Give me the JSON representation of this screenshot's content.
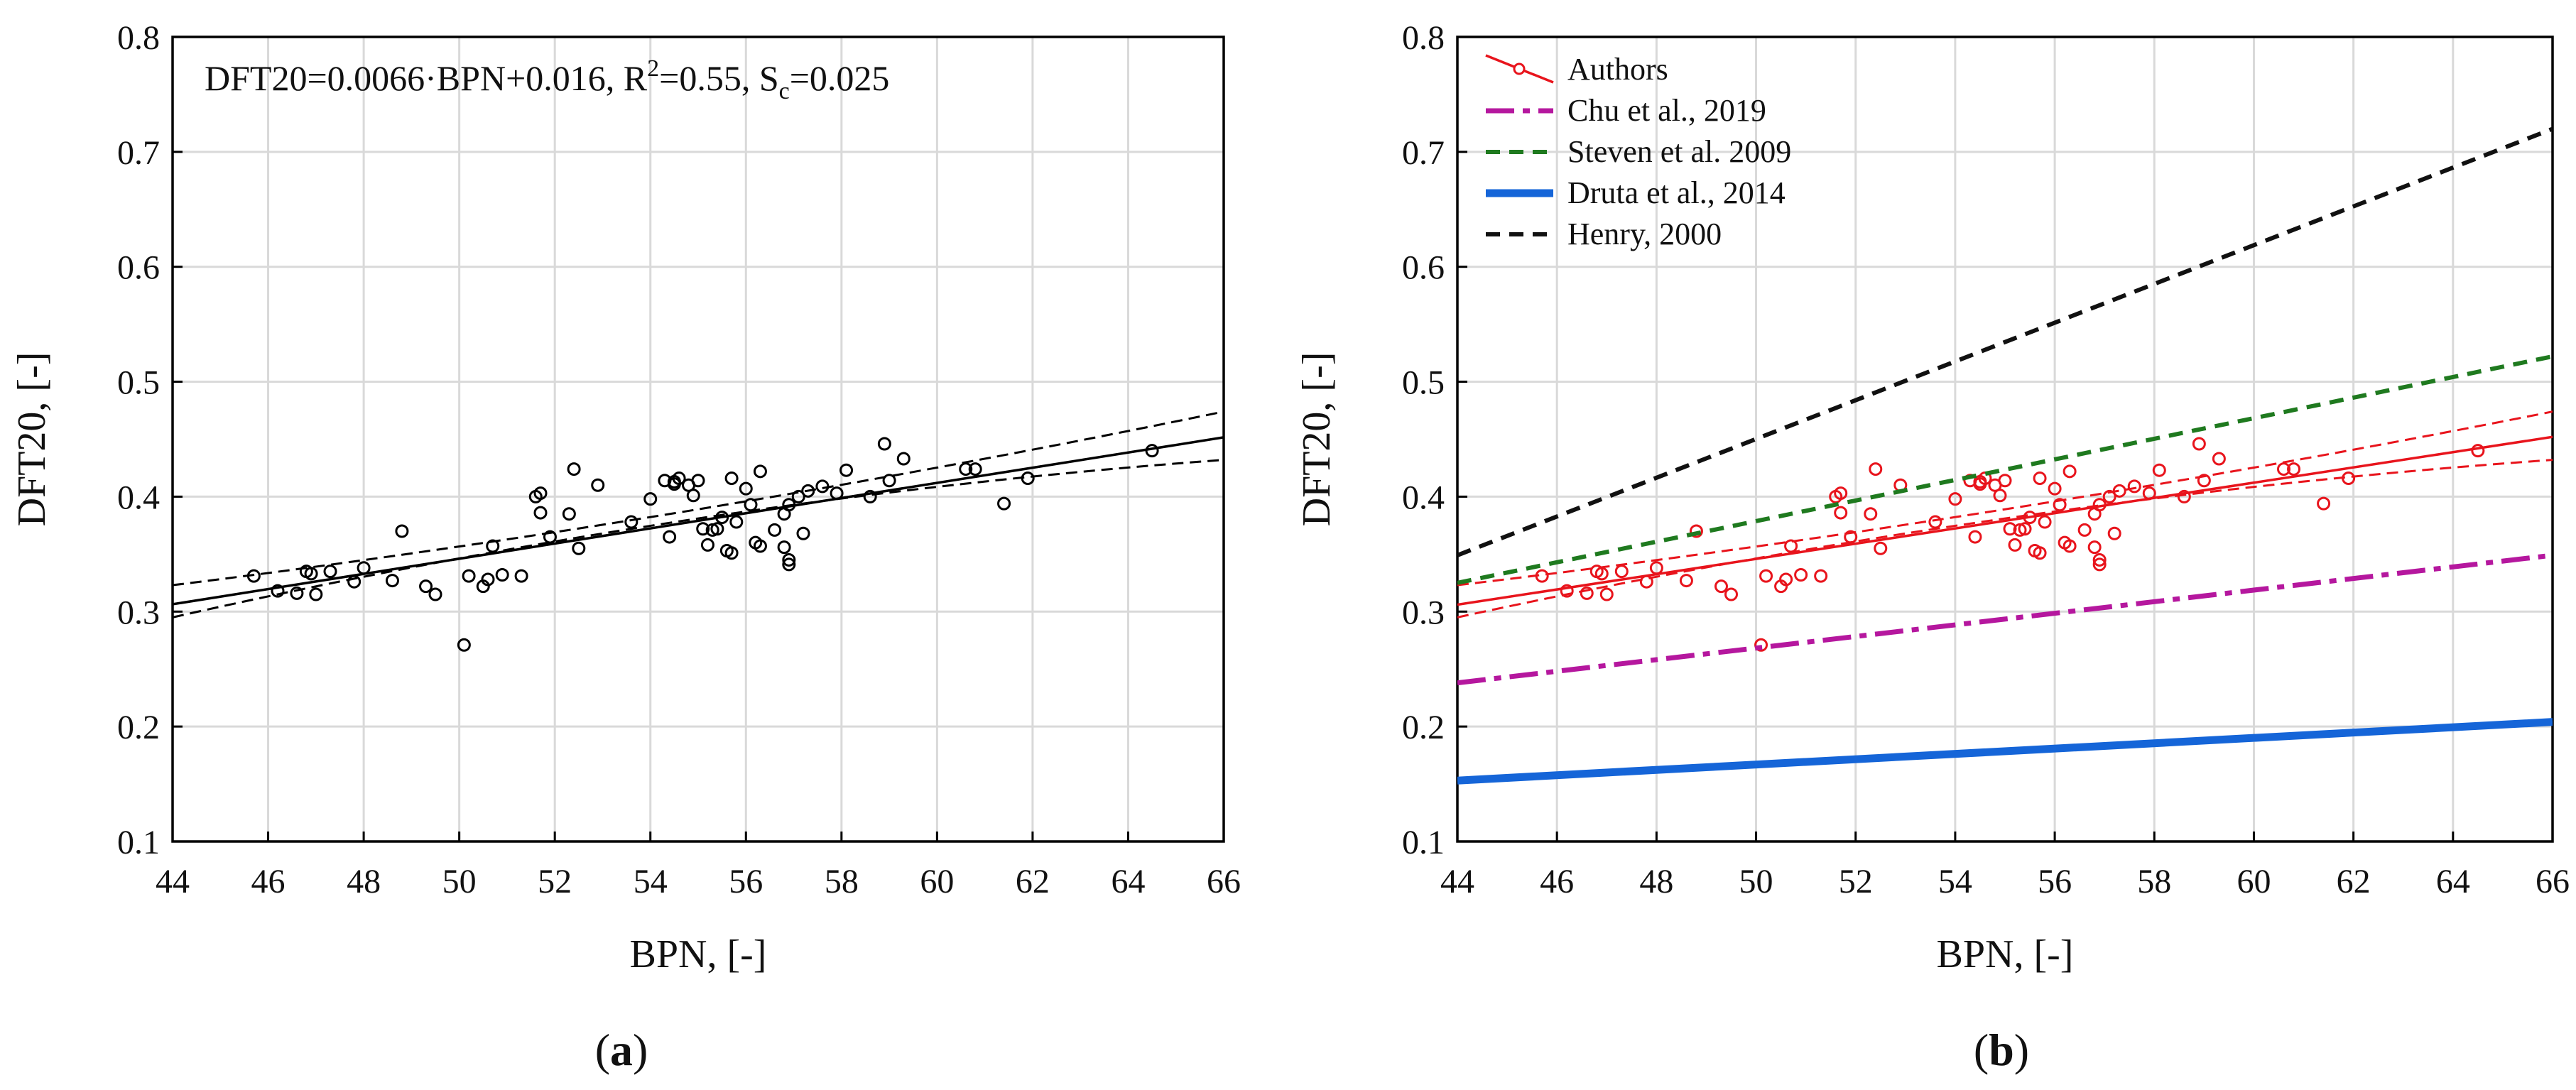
{
  "panels": [
    {
      "id": "a",
      "panel_label": "(a)",
      "annotation": "DFT20=0.0066·BPN+0.016, R²=0.55, Sc=0.025"
    },
    {
      "id": "b",
      "panel_label": "(b)"
    }
  ],
  "chart_data": [
    {
      "type": "scatter",
      "panel": "(a)",
      "xlabel": "BPN, [-]",
      "ylabel": "DFT20, [-]",
      "xlim": [
        44,
        66
      ],
      "ylim": [
        0.1,
        0.8
      ],
      "xticks": [
        "44",
        "46",
        "48",
        "50",
        "52",
        "54",
        "56",
        "58",
        "60",
        "62",
        "64",
        "66"
      ],
      "yticks": [
        "0.1",
        "0.2",
        "0.3",
        "0.4",
        "0.5",
        "0.6",
        "0.7",
        "0.8"
      ],
      "grid": true,
      "annotation": "DFT20=0.0066·BPN+0.016, R²=0.55, Sc=0.025",
      "points": [
        [
          45.7,
          0.331
        ],
        [
          46.2,
          0.318
        ],
        [
          46.6,
          0.316
        ],
        [
          46.8,
          0.335
        ],
        [
          46.9,
          0.333
        ],
        [
          47.0,
          0.315
        ],
        [
          47.3,
          0.335
        ],
        [
          47.8,
          0.326
        ],
        [
          48.0,
          0.338
        ],
        [
          48.6,
          0.327
        ],
        [
          48.8,
          0.37
        ],
        [
          49.3,
          0.322
        ],
        [
          49.5,
          0.315
        ],
        [
          50.1,
          0.271
        ],
        [
          50.2,
          0.331
        ],
        [
          50.5,
          0.322
        ],
        [
          50.6,
          0.328
        ],
        [
          50.7,
          0.357
        ],
        [
          50.9,
          0.332
        ],
        [
          51.3,
          0.331
        ],
        [
          51.6,
          0.4
        ],
        [
          51.7,
          0.403
        ],
        [
          51.7,
          0.386
        ],
        [
          51.9,
          0.365
        ],
        [
          52.3,
          0.385
        ],
        [
          52.4,
          0.424
        ],
        [
          52.5,
          0.355
        ],
        [
          52.9,
          0.41
        ],
        [
          53.6,
          0.378
        ],
        [
          54.0,
          0.398
        ],
        [
          54.3,
          0.414
        ],
        [
          54.4,
          0.365
        ],
        [
          54.5,
          0.413
        ],
        [
          54.5,
          0.411
        ],
        [
          54.6,
          0.416
        ],
        [
          54.8,
          0.41
        ],
        [
          54.9,
          0.401
        ],
        [
          55.0,
          0.414
        ],
        [
          55.1,
          0.372
        ],
        [
          55.2,
          0.358
        ],
        [
          55.3,
          0.371
        ],
        [
          55.4,
          0.372
        ],
        [
          55.5,
          0.382
        ],
        [
          55.6,
          0.353
        ],
        [
          55.7,
          0.416
        ],
        [
          55.7,
          0.351
        ],
        [
          55.8,
          0.378
        ],
        [
          56.0,
          0.407
        ],
        [
          56.1,
          0.393
        ],
        [
          56.2,
          0.36
        ],
        [
          56.3,
          0.357
        ],
        [
          56.3,
          0.422
        ],
        [
          56.6,
          0.371
        ],
        [
          56.8,
          0.385
        ],
        [
          56.8,
          0.356
        ],
        [
          56.9,
          0.345
        ],
        [
          56.9,
          0.341
        ],
        [
          56.9,
          0.393
        ],
        [
          57.1,
          0.4
        ],
        [
          57.2,
          0.368
        ],
        [
          57.3,
          0.405
        ],
        [
          57.6,
          0.409
        ],
        [
          57.9,
          0.403
        ],
        [
          58.1,
          0.423
        ],
        [
          58.6,
          0.4
        ],
        [
          58.9,
          0.446
        ],
        [
          59.0,
          0.414
        ],
        [
          59.3,
          0.433
        ],
        [
          60.6,
          0.424
        ],
        [
          60.8,
          0.424
        ],
        [
          61.4,
          0.394
        ],
        [
          61.9,
          0.416
        ],
        [
          64.5,
          0.44
        ]
      ],
      "fit": {
        "slope": 0.0066,
        "intercept": 0.016
      },
      "confidence_band": {
        "lower": [
          [
            44,
            0.295
          ],
          [
            55,
            0.381
          ],
          [
            66,
            0.432
          ]
        ],
        "upper": [
          [
            44,
            0.323
          ],
          [
            55,
            0.389
          ],
          [
            66,
            0.474
          ]
        ]
      }
    },
    {
      "type": "line",
      "panel": "(b)",
      "xlabel": "BPN, [-]",
      "ylabel": "DFT20, [-]",
      "xlim": [
        44,
        66
      ],
      "ylim": [
        0.1,
        0.8
      ],
      "xticks": [
        "44",
        "46",
        "48",
        "50",
        "52",
        "54",
        "56",
        "58",
        "60",
        "62",
        "64",
        "66"
      ],
      "yticks": [
        "0.1",
        "0.2",
        "0.3",
        "0.4",
        "0.5",
        "0.6",
        "0.7",
        "0.8"
      ],
      "grid": true,
      "legend_position": "top-left",
      "series": [
        {
          "name": "Authors",
          "color": "#e8141c",
          "style": "solid-markers",
          "x": [
            44,
            66
          ],
          "y": [
            0.306,
            0.452
          ]
        },
        {
          "name": "Chu et al., 2019",
          "color": "#b5179e",
          "style": "long-dash",
          "x": [
            44,
            66
          ],
          "y": [
            0.238,
            0.349
          ]
        },
        {
          "name": "Steven et al. 2009",
          "color": "#1f7a1f",
          "style": "dash",
          "x": [
            44,
            66
          ],
          "y": [
            0.325,
            0.522
          ]
        },
        {
          "name": "Druta et al., 2014",
          "color": "#1565d8",
          "style": "thick-solid",
          "x": [
            44,
            66
          ],
          "y": [
            0.153,
            0.204
          ]
        },
        {
          "name": "Henry, 2000",
          "color": "#111111",
          "style": "dash",
          "x": [
            44,
            66
          ],
          "y": [
            0.349,
            0.72
          ]
        }
      ]
    }
  ]
}
